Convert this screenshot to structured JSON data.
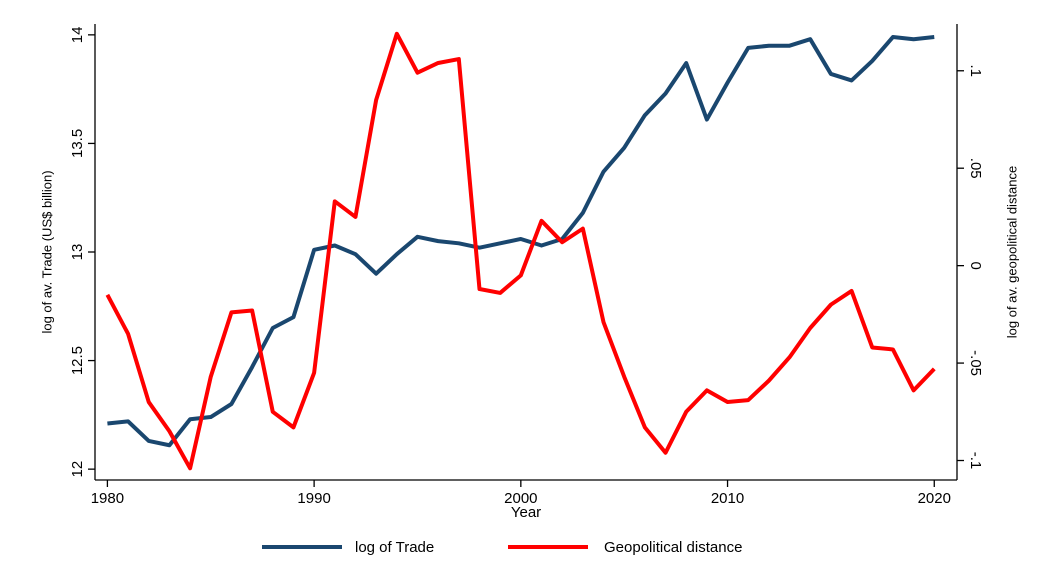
{
  "chart_data": {
    "type": "line",
    "x_label": "Year",
    "y_label": "log of av. Trade (US$ billion)",
    "y2_label": "log of av. geopolitical distance",
    "x": [
      1980,
      1981,
      1982,
      1983,
      1984,
      1985,
      1986,
      1987,
      1988,
      1989,
      1990,
      1991,
      1992,
      1993,
      1994,
      1995,
      1996,
      1997,
      1998,
      1999,
      2000,
      2001,
      2002,
      2003,
      2004,
      2005,
      2006,
      2007,
      2008,
      2009,
      2010,
      2011,
      2012,
      2013,
      2014,
      2015,
      2016,
      2017,
      2018,
      2019,
      2020
    ],
    "series": [
      {
        "name": "log of Trade",
        "color": "#1a476f",
        "values": [
          12.21,
          12.22,
          12.13,
          12.11,
          12.23,
          12.24,
          12.3,
          12.47,
          12.65,
          12.7,
          13.01,
          13.03,
          12.99,
          12.9,
          12.99,
          13.07,
          13.05,
          13.04,
          13.02,
          13.04,
          13.06,
          13.03,
          13.06,
          13.18,
          13.37,
          13.48,
          13.63,
          13.73,
          13.87,
          13.61,
          13.78,
          13.94,
          13.95,
          13.95,
          13.98,
          13.82,
          13.79,
          13.88,
          13.99,
          13.98,
          13.99
        ]
      },
      {
        "name": "Geopolitical distance",
        "color": "#ff0000",
        "axis": "y2",
        "values": [
          -0.015,
          -0.035,
          -0.07,
          -0.085,
          -0.104,
          -0.057,
          -0.024,
          -0.023,
          -0.075,
          -0.083,
          -0.055,
          0.033,
          0.025,
          0.085,
          0.119,
          0.099,
          0.104,
          0.106,
          -0.012,
          -0.014,
          -0.005,
          0.023,
          0.012,
          0.019,
          -0.029,
          -0.057,
          -0.083,
          -0.096,
          -0.075,
          -0.064,
          -0.07,
          -0.069,
          -0.059,
          -0.047,
          -0.032,
          -0.02,
          -0.013,
          -0.042,
          -0.043,
          -0.064,
          -0.053
        ]
      }
    ],
    "xlim": [
      1979.4,
      2021.1
    ],
    "xticks": [
      1980,
      1990,
      2000,
      2010,
      2020
    ],
    "ylim": [
      11.95,
      14.05
    ],
    "yticks": [
      12,
      12.5,
      13,
      13.5,
      14
    ],
    "y2lim": [
      -0.11,
      0.124
    ],
    "y2ticks": [
      {
        "value": -0.1,
        "label": "-.1"
      },
      {
        "value": -0.05,
        "label": "-.05"
      },
      {
        "value": 0,
        "label": "0"
      },
      {
        "value": 0.05,
        "label": ".05"
      },
      {
        "value": 0.1,
        "label": ".1"
      }
    ],
    "legend": "bottom"
  }
}
